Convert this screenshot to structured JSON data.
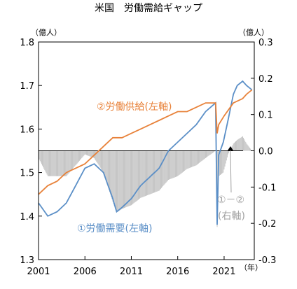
{
  "chart_data": {
    "type": "line",
    "title": "米国　労働需給ギャップ",
    "unit_left": "（億人）",
    "unit_right": "（億人）",
    "unit_x": "（年）",
    "x_ticks": [
      "2001",
      "2006",
      "2011",
      "2016",
      "2021"
    ],
    "y_left": {
      "range": [
        1.3,
        1.8
      ],
      "ticks": [
        "1.3",
        "1.4",
        "1.5",
        "1.6",
        "1.7",
        "1.8"
      ]
    },
    "y_right": {
      "range": [
        -0.3,
        0.3
      ],
      "ticks": [
        "-0.3",
        "-0.2",
        "-0.1",
        "0.0",
        "0.1",
        "0.2",
        "0.3"
      ]
    },
    "colors": {
      "demand": "#5b8fc7",
      "supply": "#e8823a",
      "gap": "#b8b8b8",
      "zero_line": "#000000",
      "marker": "#000000"
    },
    "series": [
      {
        "name": "①労働需要(左軸)",
        "axis": "left",
        "x": [
          "2001-01",
          "2002-01",
          "2003-01",
          "2004-01",
          "2005-01",
          "2006-01",
          "2007-01",
          "2008-01",
          "2009-01",
          "2009-06",
          "2010-01",
          "2011-01",
          "2012-01",
          "2013-01",
          "2014-01",
          "2015-01",
          "2016-01",
          "2017-01",
          "2018-01",
          "2019-01",
          "2020-02",
          "2020-04",
          "2020-06",
          "2020-12",
          "2021-06",
          "2022-01",
          "2022-06",
          "2023-01",
          "2023-06",
          "2024-01"
        ],
        "values": [
          1.43,
          1.4,
          1.41,
          1.43,
          1.47,
          1.51,
          1.52,
          1.5,
          1.44,
          1.41,
          1.42,
          1.44,
          1.47,
          1.49,
          1.51,
          1.55,
          1.57,
          1.59,
          1.61,
          1.64,
          1.66,
          1.38,
          1.54,
          1.57,
          1.62,
          1.68,
          1.7,
          1.71,
          1.7,
          1.69
        ]
      },
      {
        "name": "②労働供給(左軸)",
        "axis": "left",
        "x": [
          "2001-01",
          "2002-01",
          "2003-01",
          "2004-01",
          "2005-01",
          "2006-01",
          "2007-01",
          "2008-01",
          "2009-01",
          "2010-01",
          "2011-01",
          "2012-01",
          "2013-01",
          "2014-01",
          "2015-01",
          "2016-01",
          "2017-01",
          "2018-01",
          "2019-01",
          "2020-02",
          "2020-04",
          "2020-06",
          "2021-01",
          "2022-01",
          "2023-01",
          "2023-06",
          "2024-01"
        ],
        "values": [
          1.45,
          1.47,
          1.48,
          1.5,
          1.51,
          1.52,
          1.54,
          1.56,
          1.58,
          1.58,
          1.59,
          1.6,
          1.61,
          1.62,
          1.63,
          1.64,
          1.64,
          1.65,
          1.66,
          1.66,
          1.59,
          1.61,
          1.63,
          1.66,
          1.67,
          1.68,
          1.69
        ]
      },
      {
        "name": "①－②(右軸)",
        "axis": "right",
        "style": "bars",
        "x": [
          "2001-01",
          "2002-01",
          "2003-01",
          "2004-01",
          "2005-01",
          "2006-01",
          "2007-01",
          "2008-01",
          "2009-01",
          "2009-06",
          "2010-01",
          "2011-01",
          "2012-01",
          "2013-01",
          "2014-01",
          "2015-01",
          "2016-01",
          "2017-01",
          "2018-01",
          "2019-01",
          "2020-02",
          "2020-04",
          "2020-06",
          "2020-12",
          "2021-06",
          "2022-01",
          "2022-06",
          "2023-01",
          "2023-06",
          "2024-01"
        ],
        "values": [
          -0.02,
          -0.07,
          -0.07,
          -0.07,
          -0.04,
          -0.01,
          -0.02,
          -0.06,
          -0.14,
          -0.17,
          -0.16,
          -0.15,
          -0.13,
          -0.12,
          -0.11,
          -0.08,
          -0.07,
          -0.05,
          -0.04,
          -0.02,
          0.0,
          -0.21,
          -0.07,
          -0.06,
          -0.01,
          0.02,
          0.03,
          0.04,
          0.02,
          0.0
        ]
      }
    ],
    "annotations": [
      {
        "text": "②労働供給(左軸)",
        "color": "#e8823a"
      },
      {
        "text": "①労働需要(左軸)",
        "color": "#5b8fc7"
      },
      {
        "text": "①－②",
        "text2": "(右軸)",
        "color": "#a0a0a0"
      }
    ],
    "grid": false
  }
}
